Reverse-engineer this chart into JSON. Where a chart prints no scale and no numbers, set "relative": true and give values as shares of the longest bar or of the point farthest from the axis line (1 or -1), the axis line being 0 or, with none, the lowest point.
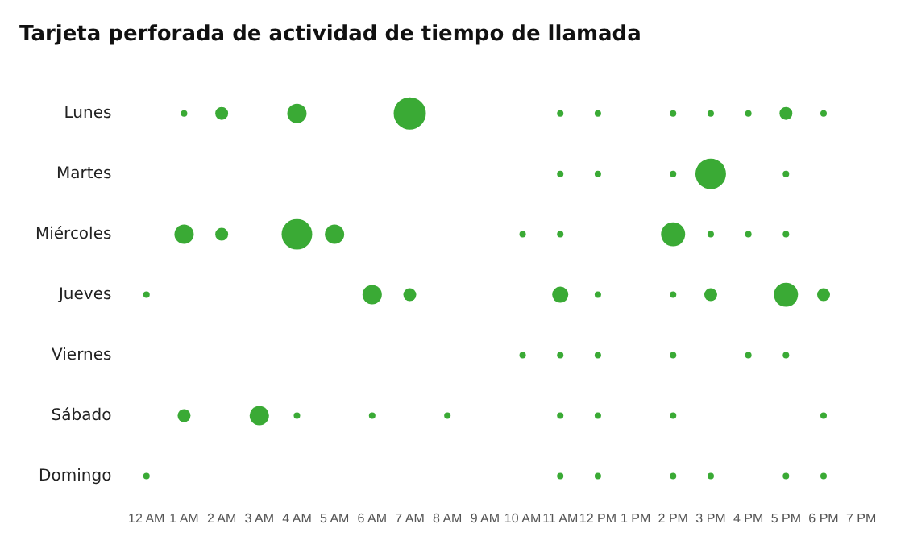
{
  "chart_data": {
    "type": "bubble",
    "title": "Tarjeta perforada de actividad de tiempo de llamada",
    "color": "#3aaa35",
    "grid": false,
    "legend": false,
    "categories": [
      "12 AM",
      "1 AM",
      "2 AM",
      "3 AM",
      "4 AM",
      "5 AM",
      "6 AM",
      "7 AM",
      "8 AM",
      "9 AM",
      "10 AM",
      "11 AM",
      "12 PM",
      "1 PM",
      "2 PM",
      "3 PM",
      "4 PM",
      "5 PM",
      "6 PM",
      "7 PM"
    ],
    "relative": true,
    "y_categories": [
      "Lunes",
      "Martes",
      "Miércoles",
      "Jueves",
      "Viernes",
      "Sábado",
      "Domingo"
    ],
    "series": [
      {
        "x": [
          "1 AM",
          "2 AM",
          "4 AM",
          "7 AM",
          "11 AM",
          "12 PM",
          "2 PM",
          "3 PM",
          "4 PM",
          "5 PM",
          "6 PM",
          "11 AM",
          "12 PM",
          "2 PM",
          "3 PM",
          "5 PM",
          "1 AM",
          "2 AM",
          "4 AM",
          "5 AM",
          "10 AM",
          "11 AM",
          "2 PM",
          "3 PM",
          "4 PM",
          "5 PM",
          "12 AM",
          "6 AM",
          "7 AM",
          "11 AM",
          "12 PM",
          "2 PM",
          "3 PM",
          "5 PM",
          "6 PM",
          "10 AM",
          "11 AM",
          "12 PM",
          "2 PM",
          "4 PM",
          "5 PM",
          "1 AM",
          "3 AM",
          "4 AM",
          "6 AM",
          "8 AM",
          "11 AM",
          "12 PM",
          "2 PM",
          "6 PM",
          "12 AM",
          "11 AM",
          "12 PM",
          "2 PM",
          "3 PM",
          "5 PM",
          "6 PM"
        ],
        "values": [
          1,
          1,
          1,
          1,
          1,
          1,
          1,
          1,
          1,
          1,
          1,
          0.8333,
          0.8333,
          0.8333,
          0.8333,
          0.8333,
          0.6667,
          0.6667,
          0.6667,
          0.6667,
          0.6667,
          0.6667,
          0.6667,
          0.6667,
          0.6667,
          0.6667,
          0.5,
          0.5,
          0.5,
          0.5,
          0.5,
          0.5,
          0.5,
          0.5,
          0.5,
          0.3333,
          0.3333,
          0.3333,
          0.3333,
          0.3333,
          0.3333,
          0.1667,
          0.1667,
          0.1667,
          0.1667,
          0.1667,
          0.1667,
          0.1667,
          0.1667,
          0.1667,
          0,
          0,
          0,
          0,
          0,
          0,
          0
        ],
        "sizes": [
          0.04,
          0.16,
          0.36,
          1,
          0.04,
          0.04,
          0.04,
          0.04,
          0.04,
          0.16,
          0.04,
          0.04,
          0.04,
          0.04,
          0.9,
          0.04,
          0.36,
          0.16,
          0.9,
          0.36,
          0.04,
          0.04,
          0.56,
          0.04,
          0.04,
          0.04,
          0.04,
          0.36,
          0.16,
          0.25,
          0.04,
          0.04,
          0.16,
          0.56,
          0.16,
          0.04,
          0.04,
          0.04,
          0.04,
          0.04,
          0.04,
          0.16,
          0.36,
          0.04,
          0.04,
          0.04,
          0.04,
          0.04,
          0.04,
          0.04,
          0.04,
          0.04,
          0.04,
          0.04,
          0.04,
          0.04,
          0.04
        ]
      }
    ]
  }
}
